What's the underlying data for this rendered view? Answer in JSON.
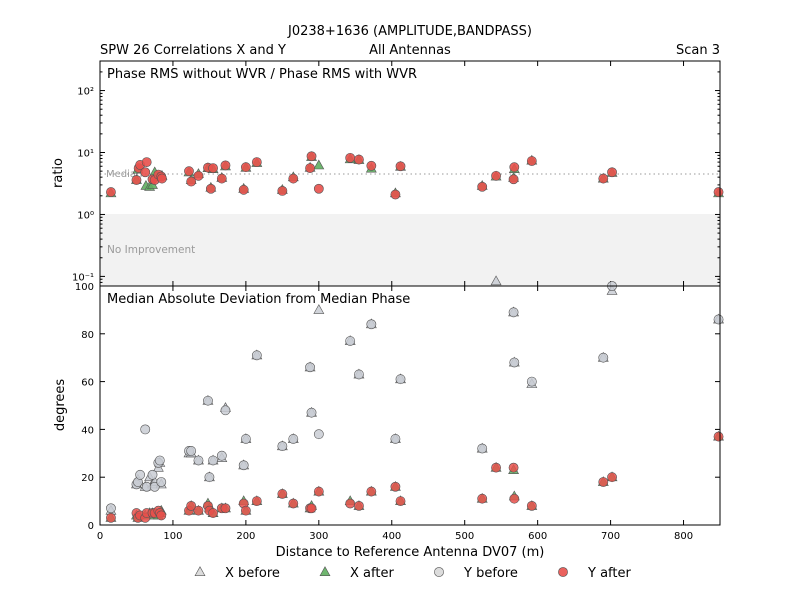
{
  "figure": {
    "title": "J0238+1636 (AMPLITUDE,BANDPASS)",
    "left_label": "SPW 26 Correlations X and Y",
    "center_label": "All Antennas",
    "right_label": "Scan 3",
    "xlabel": "Distance to Reference Antenna DV07 (m)"
  },
  "legend": [
    {
      "label": "X before",
      "marker": "triangle",
      "color": "#d8d8d8"
    },
    {
      "label": "X after",
      "marker": "triangle",
      "color": "#5fae5f"
    },
    {
      "label": "Y before",
      "marker": "circle",
      "color": "#d8d8d8"
    },
    {
      "label": "Y after",
      "marker": "circle",
      "color": "#e8504b"
    }
  ],
  "colors": {
    "x_before": "#c9ccd3",
    "x_after": "#5fae5f",
    "y_before": "#c9ccd3",
    "y_after": "#e8504b",
    "no_improvement_band": "#f2f2f2"
  },
  "chart_data": [
    {
      "type": "scatter",
      "title": "Phase RMS without WVR / Phase RMS with WVR",
      "ylabel": "ratio",
      "yscale": "log",
      "xlim": [
        0,
        850
      ],
      "ylim": [
        0.07,
        300
      ],
      "yticks": [
        0.1,
        1,
        10,
        100
      ],
      "ytick_labels": [
        "10⁻¹",
        "10⁰",
        "10¹",
        "10²"
      ],
      "median_label": "Median",
      "median_value": 4.5,
      "band_label": "No Improvement",
      "band_range": [
        0.07,
        1.0
      ],
      "series": [
        {
          "name": "X after",
          "marker": "triangle",
          "points": [
            [
              15,
              2.2
            ],
            [
              50,
              3.6
            ],
            [
              52,
              5.3
            ],
            [
              63,
              2.9
            ],
            [
              68,
              2.8
            ],
            [
              72,
              3.0
            ],
            [
              75,
              4.8
            ],
            [
              80,
              4.0
            ],
            [
              85,
              4.2
            ],
            [
              122,
              4.8
            ],
            [
              125,
              3.6
            ],
            [
              135,
              4.5
            ],
            [
              148,
              5.6
            ],
            [
              152,
              2.7
            ],
            [
              155,
              5.4
            ],
            [
              167,
              3.9
            ],
            [
              172,
              6.0
            ],
            [
              197,
              2.6
            ],
            [
              200,
              5.7
            ],
            [
              215,
              6.8
            ],
            [
              250,
              2.5
            ],
            [
              265,
              4.0
            ],
            [
              288,
              5.7
            ],
            [
              290,
              8.5
            ],
            [
              300,
              6.2
            ],
            [
              343,
              7.8
            ],
            [
              355,
              7.6
            ],
            [
              372,
              5.5
            ],
            [
              405,
              2.2
            ],
            [
              412,
              5.9
            ],
            [
              524,
              2.9
            ],
            [
              543,
              4.1
            ],
            [
              567,
              3.9
            ],
            [
              568,
              5.4
            ],
            [
              592,
              7.4
            ],
            [
              690,
              3.8
            ],
            [
              702,
              4.7
            ],
            [
              848,
              2.2
            ]
          ]
        },
        {
          "name": "Y after",
          "marker": "circle",
          "points": [
            [
              15,
              2.3
            ],
            [
              50,
              3.6
            ],
            [
              53,
              5.6
            ],
            [
              55,
              6.3
            ],
            [
              62,
              4.8
            ],
            [
              64,
              7.0
            ],
            [
              72,
              3.7
            ],
            [
              75,
              3.6
            ],
            [
              80,
              4.4
            ],
            [
              84,
              4.1
            ],
            [
              85,
              3.8
            ],
            [
              122,
              5.0
            ],
            [
              125,
              3.4
            ],
            [
              135,
              4.2
            ],
            [
              148,
              5.7
            ],
            [
              152,
              2.6
            ],
            [
              155,
              5.6
            ],
            [
              167,
              3.8
            ],
            [
              172,
              6.2
            ],
            [
              197,
              2.5
            ],
            [
              200,
              5.8
            ],
            [
              215,
              7.0
            ],
            [
              250,
              2.4
            ],
            [
              265,
              3.8
            ],
            [
              288,
              5.6
            ],
            [
              290,
              8.7
            ],
            [
              300,
              2.6
            ],
            [
              343,
              8.2
            ],
            [
              355,
              7.7
            ],
            [
              372,
              6.1
            ],
            [
              405,
              2.1
            ],
            [
              412,
              6.0
            ],
            [
              524,
              2.8
            ],
            [
              543,
              4.2
            ],
            [
              567,
              3.7
            ],
            [
              568,
              5.8
            ],
            [
              592,
              7.3
            ],
            [
              690,
              3.8
            ],
            [
              702,
              4.8
            ],
            [
              848,
              2.3
            ]
          ]
        }
      ]
    },
    {
      "type": "scatter",
      "title": "Median Absolute Deviation from Median Phase",
      "ylabel": "degrees",
      "xlim": [
        0,
        850
      ],
      "ylim": [
        0,
        100
      ],
      "yticks": [
        0,
        20,
        40,
        60,
        80,
        100
      ],
      "xticks": [
        0,
        100,
        200,
        300,
        400,
        500,
        600,
        700,
        800
      ],
      "series": [
        {
          "name": "X before",
          "marker": "triangle",
          "points": [
            [
              15,
              6
            ],
            [
              50,
              17
            ],
            [
              52,
              19
            ],
            [
              62,
              16
            ],
            [
              68,
              20
            ],
            [
              72,
              17
            ],
            [
              75,
              18
            ],
            [
              80,
              24
            ],
            [
              82,
              26
            ],
            [
              84,
              17
            ],
            [
              122,
              30
            ],
            [
              125,
              30
            ],
            [
              135,
              27
            ],
            [
              148,
              52
            ],
            [
              150,
              20
            ],
            [
              155,
              27
            ],
            [
              167,
              28
            ],
            [
              172,
              49
            ],
            [
              197,
              25
            ],
            [
              200,
              36
            ],
            [
              215,
              71
            ],
            [
              250,
              33
            ],
            [
              265,
              36
            ],
            [
              288,
              66
            ],
            [
              290,
              47
            ],
            [
              300,
              90
            ],
            [
              343,
              77
            ],
            [
              355,
              63
            ],
            [
              372,
              84
            ],
            [
              405,
              36
            ],
            [
              412,
              61
            ],
            [
              524,
              32
            ],
            [
              543,
              102
            ],
            [
              567,
              89
            ],
            [
              568,
              68
            ],
            [
              592,
              59
            ],
            [
              690,
              70
            ],
            [
              702,
              98
            ],
            [
              848,
              86
            ]
          ]
        },
        {
          "name": "Y before",
          "marker": "circle",
          "points": [
            [
              15,
              7
            ],
            [
              50,
              17
            ],
            [
              52,
              18
            ],
            [
              55,
              21
            ],
            [
              62,
              40
            ],
            [
              64,
              16
            ],
            [
              72,
              21
            ],
            [
              75,
              16
            ],
            [
              80,
              26
            ],
            [
              82,
              27
            ],
            [
              84,
              18
            ],
            [
              122,
              31
            ],
            [
              125,
              31
            ],
            [
              135,
              27
            ],
            [
              148,
              52
            ],
            [
              150,
              20
            ],
            [
              155,
              27
            ],
            [
              167,
              29
            ],
            [
              172,
              48
            ],
            [
              197,
              25
            ],
            [
              200,
              36
            ],
            [
              215,
              71
            ],
            [
              250,
              33
            ],
            [
              265,
              36
            ],
            [
              288,
              66
            ],
            [
              290,
              47
            ],
            [
              300,
              38
            ],
            [
              343,
              77
            ],
            [
              355,
              63
            ],
            [
              372,
              84
            ],
            [
              405,
              36
            ],
            [
              412,
              61
            ],
            [
              524,
              32
            ],
            [
              567,
              89
            ],
            [
              568,
              68
            ],
            [
              592,
              60
            ],
            [
              690,
              70
            ],
            [
              702,
              100
            ],
            [
              848,
              86
            ]
          ]
        },
        {
          "name": "X after",
          "marker": "triangle",
          "points": [
            [
              15,
              3
            ],
            [
              50,
              4
            ],
            [
              52,
              3
            ],
            [
              62,
              4
            ],
            [
              68,
              5
            ],
            [
              72,
              5
            ],
            [
              75,
              4
            ],
            [
              80,
              4
            ],
            [
              82,
              5
            ],
            [
              84,
              6
            ],
            [
              122,
              6
            ],
            [
              125,
              8
            ],
            [
              135,
              6
            ],
            [
              148,
              9
            ],
            [
              150,
              7
            ],
            [
              155,
              5
            ],
            [
              167,
              7
            ],
            [
              172,
              7
            ],
            [
              197,
              10
            ],
            [
              200,
              6
            ],
            [
              215,
              10
            ],
            [
              250,
              13
            ],
            [
              265,
              9
            ],
            [
              288,
              7
            ],
            [
              290,
              8
            ],
            [
              300,
              14
            ],
            [
              343,
              10
            ],
            [
              355,
              8
            ],
            [
              372,
              14
            ],
            [
              405,
              16
            ],
            [
              412,
              10
            ],
            [
              524,
              11
            ],
            [
              543,
              24
            ],
            [
              567,
              23
            ],
            [
              568,
              12
            ],
            [
              592,
              8
            ],
            [
              690,
              18
            ],
            [
              702,
              20
            ],
            [
              848,
              37
            ]
          ]
        },
        {
          "name": "Y after",
          "marker": "circle",
          "points": [
            [
              15,
              3
            ],
            [
              50,
              5
            ],
            [
              52,
              3
            ],
            [
              55,
              4
            ],
            [
              62,
              3
            ],
            [
              64,
              5
            ],
            [
              72,
              5
            ],
            [
              75,
              5
            ],
            [
              80,
              6
            ],
            [
              82,
              5
            ],
            [
              84,
              4
            ],
            [
              122,
              6
            ],
            [
              125,
              8
            ],
            [
              135,
              6
            ],
            [
              148,
              8
            ],
            [
              150,
              6
            ],
            [
              155,
              5
            ],
            [
              167,
              7
            ],
            [
              172,
              7
            ],
            [
              197,
              9
            ],
            [
              200,
              6
            ],
            [
              215,
              10
            ],
            [
              250,
              13
            ],
            [
              265,
              9
            ],
            [
              288,
              7
            ],
            [
              290,
              7
            ],
            [
              300,
              14
            ],
            [
              343,
              9
            ],
            [
              355,
              8
            ],
            [
              372,
              14
            ],
            [
              405,
              16
            ],
            [
              412,
              10
            ],
            [
              524,
              11
            ],
            [
              543,
              24
            ],
            [
              567,
              24
            ],
            [
              568,
              11
            ],
            [
              592,
              8
            ],
            [
              690,
              18
            ],
            [
              702,
              20
            ],
            [
              848,
              37
            ]
          ]
        }
      ]
    }
  ]
}
